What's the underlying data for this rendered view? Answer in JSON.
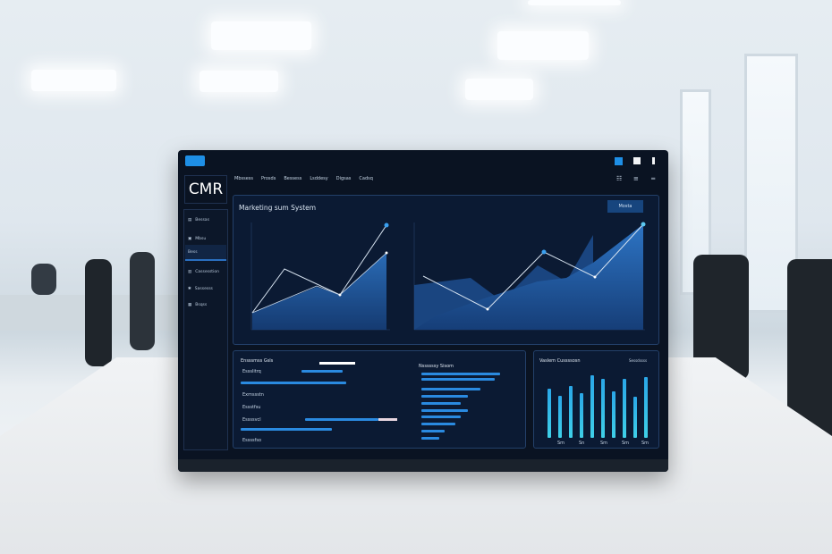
{
  "screen": {
    "logo": "CMR",
    "nav": [
      "Mbssess",
      "Prosds",
      "Bessess",
      "Lsddesy",
      "Digsas",
      "Cadsq"
    ],
    "sidebar": [
      "Bessas",
      "Mbsu",
      "Bess",
      "Cassesstion",
      "Sassesss",
      "Bsqss"
    ],
    "main_title": "Marketing sum System",
    "main_button": "Mosta",
    "panel1_title": "Ensssmss Gsls",
    "panel1_items": [
      "Essslitrq",
      "Exmssstn",
      "Essstfsu",
      "Essssvcl",
      "Essssfso"
    ],
    "panel2_title": "Nssssssy Sisom",
    "panel3_title": "Vaslem Cussssosn",
    "panel3_link": "Sessdssss",
    "panel3_xlabels": [
      "Sm",
      "Sn",
      "Sm",
      "Sm",
      "Sm"
    ]
  },
  "colors": {
    "accent": "#2a8ae0",
    "screen_bg": "#0a1322",
    "panel_bg": "#0b1a33"
  }
}
